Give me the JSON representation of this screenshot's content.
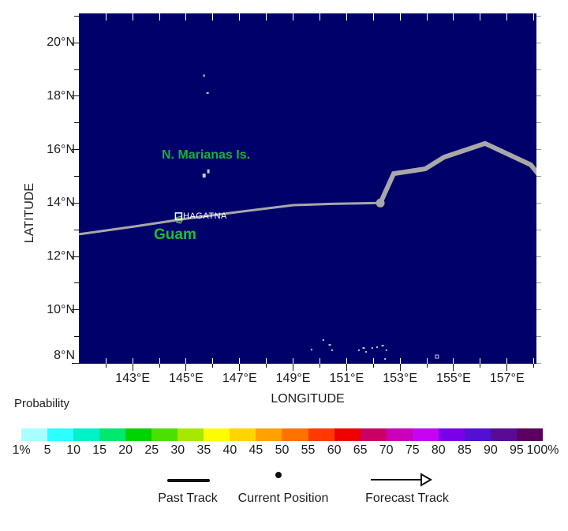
{
  "map": {
    "axis_titles": {
      "x": "LONGITUDE",
      "y": "LATITUDE"
    },
    "place_labels": {
      "marianas": "N. Marianas Is.",
      "guam": "Guam",
      "city": "HAGATNA"
    },
    "colors": {
      "sea": "#00006b",
      "track_gray": "#a8a8a8",
      "island_green": "#0e7a12",
      "label_green": "#12b437",
      "island_speck": "#c8c8c8",
      "city_marker": "#ffffff"
    }
  },
  "chart_data": {
    "type": "map-track",
    "title": "",
    "x_axis": {
      "title": "LONGITUDE",
      "range_deg_east": [
        141.0,
        158.2
      ],
      "ticks": [
        142,
        143,
        144,
        145,
        146,
        147,
        148,
        149,
        150,
        151,
        152,
        153,
        154,
        155,
        156,
        157,
        158
      ],
      "tick_labels": [
        "",
        "143°E",
        "",
        "145°E",
        "",
        "147°E",
        "",
        "149°E",
        "",
        "151°E",
        "",
        "153°E",
        "",
        "155°E",
        "",
        "157°E",
        ""
      ]
    },
    "y_axis": {
      "title": "LATITUDE",
      "range_deg_north": [
        8.0,
        21.1
      ],
      "ticks": [
        8,
        9,
        10,
        11,
        12,
        13,
        14,
        15,
        16,
        17,
        18,
        19,
        20,
        21
      ],
      "tick_labels": [
        "8°N",
        "",
        "10°N",
        "",
        "12°N",
        "",
        "14°N",
        "",
        "16°N",
        "",
        "18°N",
        "",
        "20°N",
        ""
      ]
    },
    "past_track_lon_lat": [
      [
        140.99,
        12.83
      ],
      [
        143.05,
        13.12
      ],
      [
        145.03,
        13.42
      ],
      [
        147.04,
        13.68
      ],
      [
        149.01,
        13.92
      ],
      [
        150.43,
        13.97
      ],
      [
        152.26,
        14.0
      ]
    ],
    "current_position_lon_lat": [
      152.26,
      14.0
    ],
    "forecast_track_lon_lat": [
      [
        152.26,
        14.0
      ],
      [
        152.76,
        15.1
      ],
      [
        153.94,
        15.28
      ],
      [
        154.65,
        15.72
      ],
      [
        156.18,
        16.23
      ],
      [
        157.89,
        15.43
      ],
      [
        158.18,
        15.07
      ]
    ],
    "city_marker_lon_lat": [
      144.6,
      13.63
    ],
    "guam_island_lon_lat": [
      144.62,
      13.39
    ],
    "islands_lon_lat_w_h_outline": [
      [
        145.67,
        18.77,
        2,
        3,
        0
      ],
      [
        145.8,
        18.12,
        3,
        2,
        0
      ],
      [
        145.83,
        15.19,
        3,
        5,
        0
      ],
      [
        145.67,
        15.03,
        4,
        5,
        0
      ],
      [
        149.69,
        8.51,
        2,
        2,
        0
      ],
      [
        150.13,
        8.87,
        2,
        2,
        0
      ],
      [
        150.37,
        8.69,
        3,
        2,
        0
      ],
      [
        150.46,
        8.49,
        2,
        2,
        0
      ],
      [
        151.46,
        8.49,
        2,
        2,
        0
      ],
      [
        151.64,
        8.57,
        3,
        2,
        0
      ],
      [
        151.73,
        8.43,
        2,
        2,
        0
      ],
      [
        151.96,
        8.57,
        2,
        2,
        0
      ],
      [
        152.14,
        8.6,
        2,
        2,
        0
      ],
      [
        152.35,
        8.66,
        3,
        2,
        0
      ],
      [
        152.49,
        8.49,
        2,
        2,
        0
      ],
      [
        152.44,
        8.16,
        2,
        2,
        0
      ],
      [
        154.38,
        8.25,
        4,
        4,
        1
      ]
    ]
  },
  "colorbar": {
    "title": "Probability",
    "tick_labels": [
      "1%",
      "5",
      "10",
      "15",
      "20",
      "25",
      "30",
      "35",
      "40",
      "45",
      "50",
      "55",
      "60",
      "65",
      "70",
      "75",
      "80",
      "85",
      "90",
      "95",
      "100%"
    ],
    "segment_colors": [
      "#a8ffff",
      "#2bffff",
      "#00f2c8",
      "#00e96e",
      "#00d400",
      "#4ce000",
      "#a6e800",
      "#fdfd00",
      "#ffd400",
      "#ffa200",
      "#ff7200",
      "#ff3a00",
      "#f10000",
      "#cb0065",
      "#cb00ba",
      "#c603f2",
      "#7a00e9",
      "#5410d1",
      "#5a0b95",
      "#5b0061"
    ]
  },
  "legend": {
    "past_track": "Past Track",
    "current_position": "Current Position",
    "forecast_track": "Forecast Track"
  }
}
